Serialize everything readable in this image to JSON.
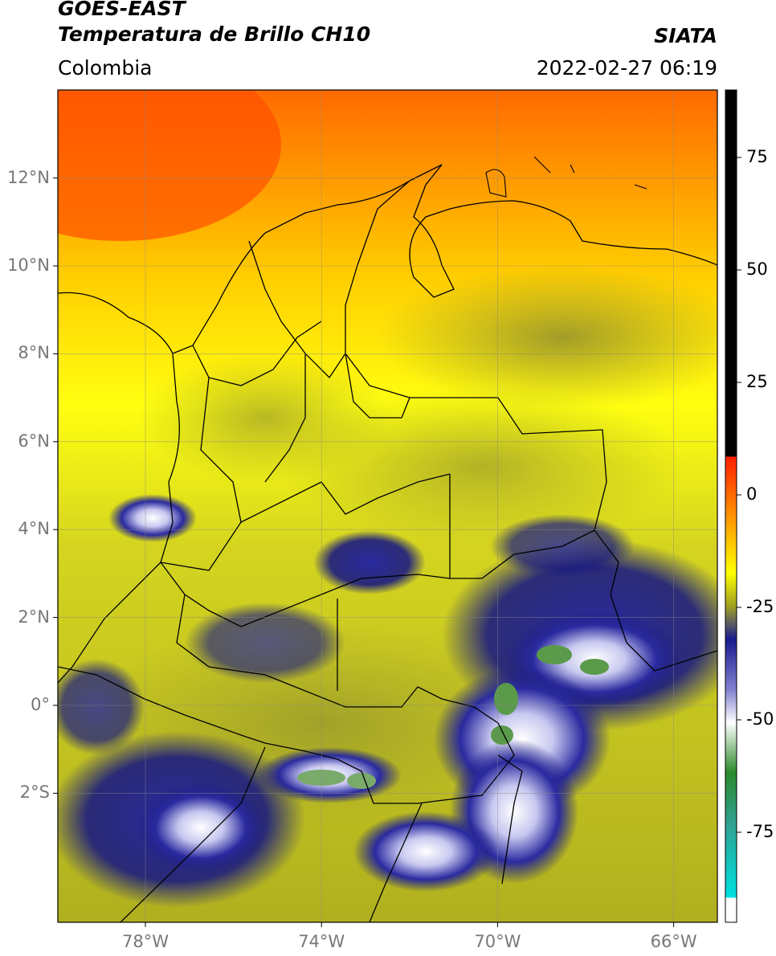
{
  "header": {
    "satellite": "GOES-EAST",
    "product": "Temperatura de Brillo CH10",
    "organization": "SIATA",
    "region": "Colombia",
    "datetime": "2022-02-27 06:19"
  },
  "map": {
    "lat_ticks": [
      {
        "value": 12,
        "label": "12°N"
      },
      {
        "value": 10,
        "label": "10°N"
      },
      {
        "value": 8,
        "label": "8°N"
      },
      {
        "value": 6,
        "label": "6°N"
      },
      {
        "value": 4,
        "label": "4°N"
      },
      {
        "value": 2,
        "label": "2°N"
      },
      {
        "value": 0,
        "label": "0°"
      },
      {
        "value": -2,
        "label": "2°S"
      }
    ],
    "lon_ticks": [
      {
        "value": -78,
        "label": "78°W"
      },
      {
        "value": -74,
        "label": "74°W"
      },
      {
        "value": -70,
        "label": "70°W"
      },
      {
        "value": -66,
        "label": "66°W"
      }
    ],
    "grid": true,
    "colors": {
      "warm": "#ff5a00",
      "mild": "#ffff00",
      "olive": "#a8a820",
      "cold": "#1a1a90",
      "coldest": "#ffffff",
      "green": "#5a9a4a",
      "border": "#000000"
    }
  },
  "colorbar": {
    "ticks": [
      {
        "value": 75,
        "label": "75"
      },
      {
        "value": 50,
        "label": "50"
      },
      {
        "value": 25,
        "label": "25"
      },
      {
        "value": 0,
        "label": "0"
      },
      {
        "value": -25,
        "label": "-25"
      },
      {
        "value": -50,
        "label": "-50"
      },
      {
        "value": -75,
        "label": "-75"
      }
    ],
    "range": [
      -95,
      90
    ]
  }
}
